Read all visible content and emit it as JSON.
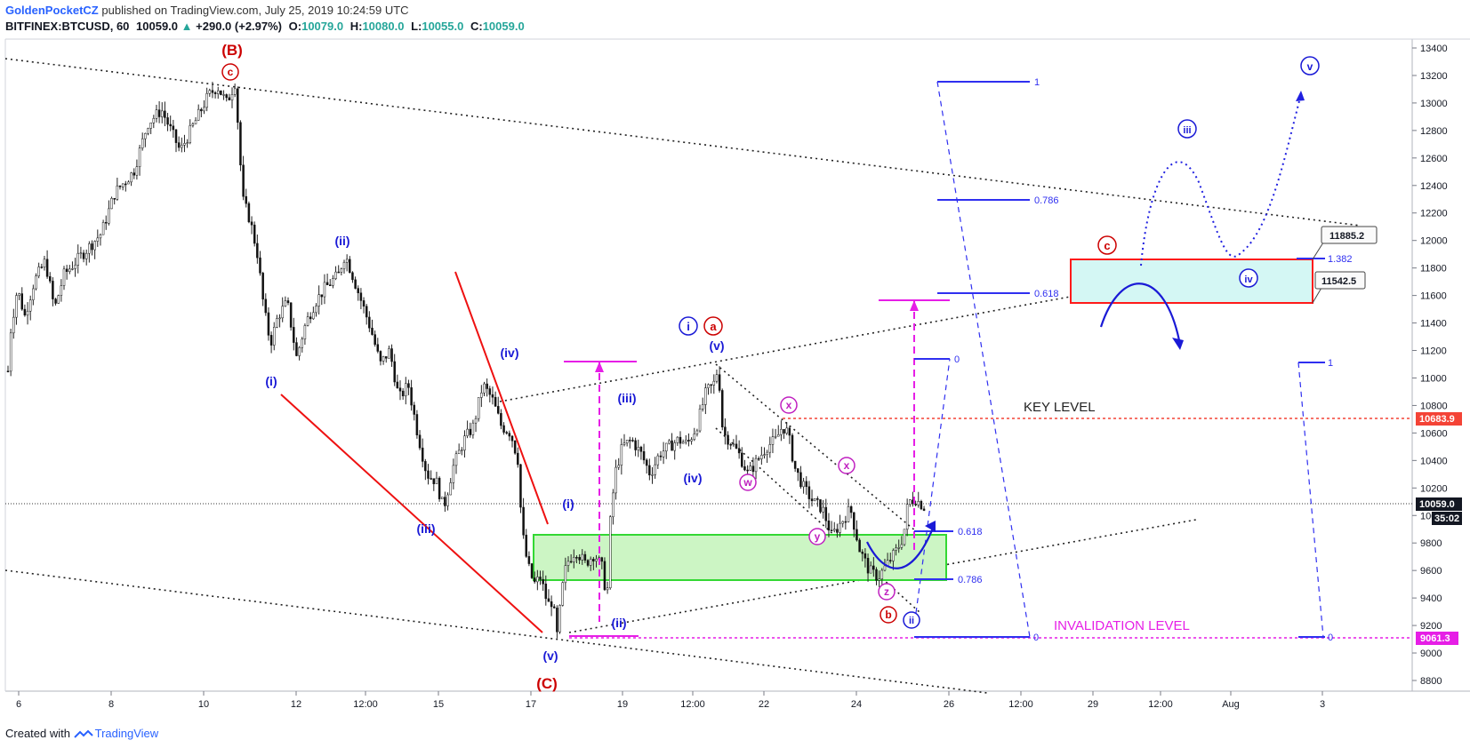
{
  "header": {
    "author": "GoldenPocketCZ",
    "published": "published on TradingView.com, July 25, 2019 10:24:59 UTC",
    "symbol": "BITFINEX:BTCUSD, 60",
    "last": "10059.0",
    "change_arrow": "▲",
    "change": "+290.0 (+2.97%)",
    "o_label": "O:",
    "o": "10079.0",
    "h_label": "H:",
    "h": "10080.0",
    "l_label": "L:",
    "l": "10055.0",
    "c_label": "C:",
    "c": "10059.0"
  },
  "footer": {
    "created_with": "Created with",
    "brand": "TradingView"
  },
  "chart_data": {
    "type": "candlestick",
    "symbol": "BITFINEX:BTCUSD",
    "interval": "60",
    "y_range": [
      8600,
      13550
    ],
    "y_ticks": [
      8800,
      9000,
      9200,
      9400,
      9600,
      9800,
      10000,
      10200,
      10400,
      10600,
      10800,
      11000,
      11200,
      11400,
      11600,
      11800,
      12000,
      12200,
      12400,
      12600,
      12800,
      13000,
      13200,
      13400
    ],
    "x_ticks": [
      "6",
      "8",
      "10",
      "12",
      "12:00",
      "15",
      "17",
      "19",
      "12:00",
      "22",
      "24",
      "26",
      "12:00",
      "29",
      "12:00",
      "Aug",
      "3"
    ],
    "price_path": [
      [
        0,
        11050
      ],
      [
        3,
        11350
      ],
      [
        10,
        11650
      ],
      [
        18,
        11450
      ],
      [
        28,
        11700
      ],
      [
        40,
        11850
      ],
      [
        50,
        11500
      ],
      [
        60,
        11750
      ],
      [
        80,
        11900
      ],
      [
        100,
        12050
      ],
      [
        115,
        12350
      ],
      [
        135,
        12500
      ],
      [
        150,
        12850
      ],
      [
        165,
        12950
      ],
      [
        185,
        12650
      ],
      [
        200,
        12850
      ],
      [
        215,
        13050
      ],
      [
        225,
        13120
      ],
      [
        235,
        13000
      ],
      [
        244,
        13150
      ],
      [
        248,
        12750
      ],
      [
        252,
        12300
      ],
      [
        260,
        12150
      ],
      [
        268,
        11900
      ],
      [
        275,
        11500
      ],
      [
        282,
        11250
      ],
      [
        290,
        11450
      ],
      [
        300,
        11550
      ],
      [
        310,
        11150
      ],
      [
        320,
        11400
      ],
      [
        330,
        11550
      ],
      [
        340,
        11650
      ],
      [
        355,
        11750
      ],
      [
        362,
        11900
      ],
      [
        370,
        11750
      ],
      [
        380,
        11550
      ],
      [
        390,
        11350
      ],
      [
        400,
        11100
      ],
      [
        410,
        11200
      ],
      [
        420,
        10850
      ],
      [
        430,
        10950
      ],
      [
        440,
        10600
      ],
      [
        450,
        10300
      ],
      [
        460,
        10250
      ],
      [
        468,
        10050
      ],
      [
        478,
        10350
      ],
      [
        490,
        10550
      ],
      [
        500,
        10650
      ],
      [
        510,
        10950
      ],
      [
        520,
        10850
      ],
      [
        530,
        10650
      ],
      [
        540,
        10600
      ],
      [
        548,
        10400
      ],
      [
        552,
        9900
      ],
      [
        558,
        9650
      ],
      [
        565,
        9500
      ],
      [
        572,
        9550
      ],
      [
        580,
        9350
      ],
      [
        585,
        9380
      ],
      [
        590,
        9120
      ],
      [
        595,
        9450
      ],
      [
        600,
        9650
      ],
      [
        610,
        9750
      ],
      [
        620,
        9650
      ],
      [
        630,
        9720
      ],
      [
        640,
        9600
      ],
      [
        643,
        9300
      ],
      [
        647,
        9950
      ],
      [
        652,
        10300
      ],
      [
        660,
        10500
      ],
      [
        670,
        10550
      ],
      [
        680,
        10450
      ],
      [
        690,
        10300
      ],
      [
        700,
        10450
      ],
      [
        710,
        10500
      ],
      [
        720,
        10550
      ],
      [
        730,
        10520
      ],
      [
        740,
        10650
      ],
      [
        750,
        10900
      ],
      [
        758,
        10950
      ],
      [
        763,
        11080
      ],
      [
        768,
        10600
      ],
      [
        775,
        10550
      ],
      [
        785,
        10450
      ],
      [
        795,
        10300
      ],
      [
        805,
        10400
      ],
      [
        815,
        10500
      ],
      [
        825,
        10550
      ],
      [
        832,
        10650
      ],
      [
        838,
        10600
      ],
      [
        845,
        10350
      ],
      [
        855,
        10200
      ],
      [
        865,
        10100
      ],
      [
        875,
        10050
      ],
      [
        885,
        9850
      ],
      [
        895,
        9950
      ],
      [
        905,
        10050
      ],
      [
        915,
        9750
      ],
      [
        925,
        9600
      ],
      [
        935,
        9550
      ],
      [
        945,
        9650
      ],
      [
        955,
        9750
      ],
      [
        962,
        9850
      ],
      [
        967,
        10100
      ],
      [
        975,
        10120
      ],
      [
        985,
        10059
      ]
    ],
    "horizontal_levels": [
      {
        "label": "KEY LEVEL",
        "value": 10683.9,
        "tag": "10683.9",
        "color": "#f44336"
      },
      {
        "label": "INVALIDATION LEVEL",
        "value": 9061.3,
        "tag": "9061.3",
        "color": "#e61ee6"
      },
      {
        "label": "",
        "value": 10059.0,
        "tag": "10059.0",
        "countdown": "35:02",
        "color": "#131722"
      }
    ],
    "zones": [
      {
        "name": "support-zone",
        "y_top": 9840,
        "y_bottom": 9490,
        "fill": "#ccf5c4",
        "border": "#33d833"
      },
      {
        "name": "target-zone",
        "y_top": 11885.2,
        "y_bottom": 11542.5,
        "fill": "#d4f7f4",
        "border": "#ff1a1a",
        "labels": [
          "11885.2",
          "11542.5"
        ]
      }
    ],
    "fibonacci": [
      {
        "label": "1",
        "value": 13200
      },
      {
        "label": "0.786",
        "value": 12320
      },
      {
        "label": "0.618",
        "value": 11625
      },
      {
        "label": "0",
        "value": 11140
      },
      {
        "label": "0.618",
        "value": 9850
      },
      {
        "label": "0.786",
        "value": 9500
      },
      {
        "label": "1.382",
        "value": 11885
      },
      {
        "label": "1",
        "value": 11120
      },
      {
        "label": "0",
        "value": 9061
      }
    ],
    "wave_labels": [
      "(B)",
      "c",
      "(i)",
      "(ii)",
      "(iii)",
      "(iv)",
      "(v)",
      "(C)",
      "(i)",
      "(ii)",
      "(iii)",
      "(iv)",
      "(v)",
      "i",
      "a",
      "w",
      "x",
      "y",
      "x",
      "z",
      "b",
      "ii",
      "c",
      "iii",
      "iv",
      "v"
    ],
    "colors": {
      "up": "#26a69a",
      "down": "#ef5350",
      "wave_blue": "#1a1ad6",
      "wave_red": "#cc0000",
      "wave_magenta": "#c020c0",
      "fib_blue": "#2f2ff0",
      "invalidation": "#e61ee6",
      "key": "#f44336"
    }
  }
}
